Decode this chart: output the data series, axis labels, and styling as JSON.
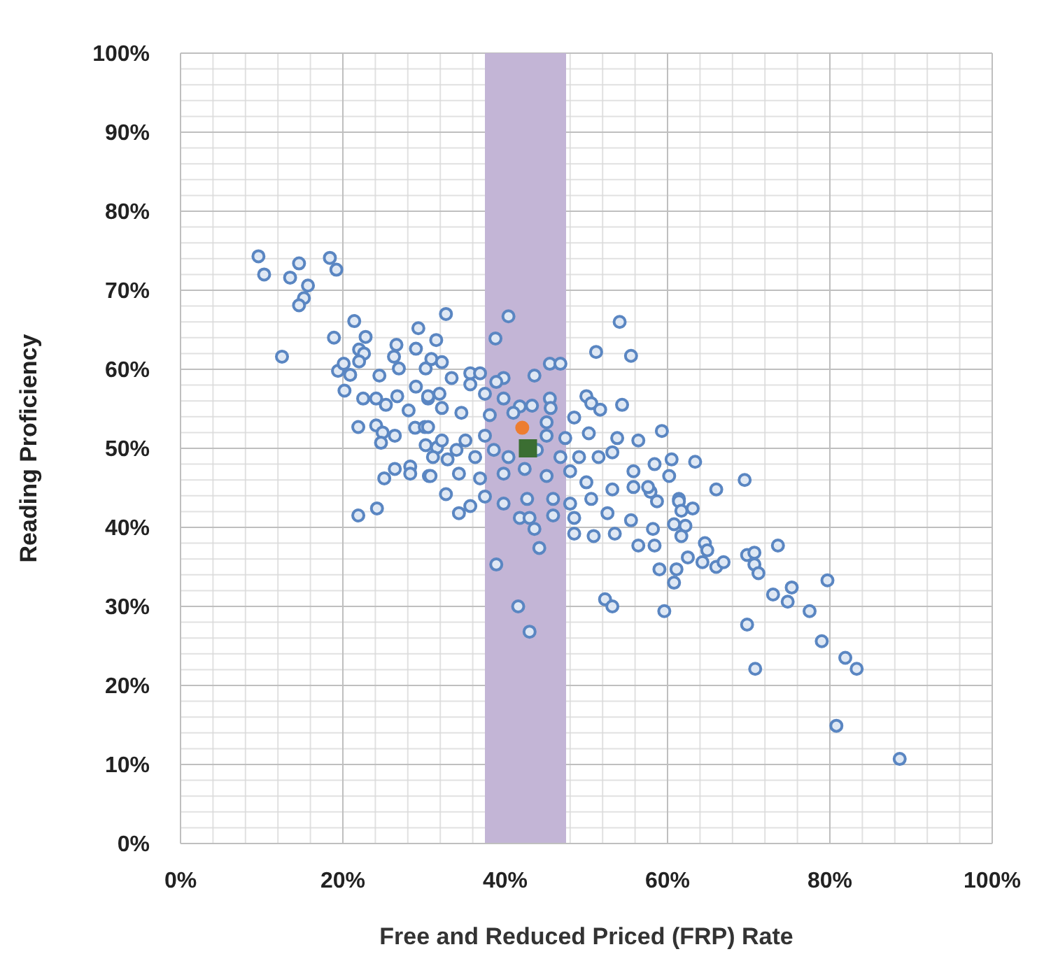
{
  "chart_data": {
    "type": "scatter",
    "xlabel": "Free and Reduced Priced (FRP) Rate",
    "ylabel": "Reading Proficiency",
    "xlim": [
      0,
      100
    ],
    "ylim": [
      0,
      100
    ],
    "xticks": [
      {
        "value": 0,
        "label": "0%"
      },
      {
        "value": 20,
        "label": "20%"
      },
      {
        "value": 40,
        "label": "40%"
      },
      {
        "value": 60,
        "label": "60%"
      },
      {
        "value": 80,
        "label": "80%"
      },
      {
        "value": 100,
        "label": "100%"
      }
    ],
    "yticks": [
      {
        "value": 0,
        "label": "0%"
      },
      {
        "value": 10,
        "label": "10%"
      },
      {
        "value": 20,
        "label": "20%"
      },
      {
        "value": 30,
        "label": "30%"
      },
      {
        "value": 40,
        "label": "40%"
      },
      {
        "value": 50,
        "label": "50%"
      },
      {
        "value": 60,
        "label": "60%"
      },
      {
        "value": 70,
        "label": "70%"
      },
      {
        "value": 80,
        "label": "80%"
      },
      {
        "value": 90,
        "label": "90%"
      },
      {
        "value": 100,
        "label": "100%"
      }
    ],
    "grid": true,
    "legend": false,
    "marker": "circle",
    "bands": [
      {
        "axis": "x",
        "from": 37.5,
        "to": 47.5,
        "color": "#c3b5d6"
      }
    ],
    "series": [
      {
        "color": "#5a86c2",
        "x": [
          9.6,
          10.3,
          14.6,
          13.5,
          15.7,
          15.2,
          14.6,
          18.4,
          19.2,
          21.4,
          18.9,
          12.5,
          22.8,
          22.0,
          22.6,
          22.0,
          19.4,
          20.1,
          20.9,
          20.2,
          24.5,
          26.6,
          26.3,
          26.9,
          29.0,
          29.3,
          31.5,
          32.7,
          30.2,
          30.9,
          32.2,
          22.5,
          24.1,
          25.3,
          26.7,
          21.9,
          24.1,
          24.9,
          24.7,
          26.4,
          28.1,
          29.0,
          28.9,
          30.1,
          30.2,
          31.6,
          32.9,
          25.1,
          26.4,
          28.3,
          28.3,
          30.6,
          32.7,
          21.9,
          24.2,
          30.5,
          31.9,
          40.4,
          54.1,
          38.8,
          51.2,
          55.5,
          45.5,
          46.8,
          43.6,
          35.7,
          36.9,
          39.8,
          38.9,
          33.4,
          35.7,
          37.5,
          39.8,
          41.8,
          43.3,
          45.5,
          45.6,
          50.0,
          50.6,
          51.7,
          54.4,
          48.5,
          45.1,
          41.0,
          38.1,
          34.6,
          32.2,
          30.5,
          59.3,
          56.4,
          53.8,
          50.3,
          47.4,
          45.1,
          37.5,
          35.1,
          32.2,
          30.5,
          58.4,
          60.5,
          60.2,
          55.8,
          53.2,
          51.5,
          49.1,
          46.8,
          43.9,
          40.4,
          38.6,
          36.3,
          34.0,
          31.1,
          30.8,
          34.3,
          36.9,
          39.8,
          42.4,
          45.1,
          48.0,
          50.0,
          53.2,
          55.8,
          57.9,
          61.4,
          37.5,
          39.8,
          42.7,
          45.9,
          48.0,
          50.6,
          34.3,
          35.7,
          41.8,
          43.0,
          45.9,
          48.5,
          52.6,
          55.5,
          48.5,
          50.9,
          53.5,
          56.4,
          58.4,
          43.6,
          44.2,
          59.0,
          38.9,
          52.3,
          53.2,
          59.6,
          41.6,
          43.0,
          63.4,
          66.0,
          69.5,
          57.6,
          58.7,
          61.4,
          61.7,
          63.1,
          60.8,
          62.2,
          61.7,
          58.2,
          64.6,
          64.9,
          62.5,
          64.3,
          66.0,
          66.9,
          61.1,
          60.8,
          69.8,
          70.7,
          70.7,
          71.2,
          73.6,
          73.0,
          75.3,
          74.8,
          79.7,
          77.5,
          69.8,
          79.0,
          81.9,
          83.3,
          70.8,
          80.8,
          88.6
        ],
        "values": [
          74.3,
          72.0,
          73.4,
          71.6,
          70.6,
          69.0,
          68.1,
          74.1,
          72.6,
          66.1,
          64.0,
          61.6,
          64.1,
          62.5,
          62.0,
          61.0,
          59.8,
          60.7,
          59.3,
          57.3,
          59.2,
          63.1,
          61.6,
          60.1,
          62.6,
          65.2,
          63.7,
          67.0,
          60.1,
          61.3,
          60.9,
          56.3,
          56.3,
          55.5,
          56.6,
          52.7,
          52.9,
          52.0,
          50.7,
          51.6,
          54.8,
          57.8,
          52.6,
          52.7,
          50.4,
          50.1,
          48.6,
          46.2,
          47.4,
          47.7,
          46.8,
          46.5,
          44.2,
          41.5,
          42.4,
          56.3,
          56.9,
          66.7,
          66.0,
          63.9,
          62.2,
          61.7,
          60.7,
          60.7,
          59.2,
          59.5,
          59.5,
          58.9,
          58.4,
          58.9,
          58.1,
          56.9,
          56.3,
          55.3,
          55.4,
          56.3,
          55.1,
          56.6,
          55.7,
          54.9,
          55.5,
          53.9,
          53.3,
          54.5,
          54.2,
          54.5,
          55.1,
          56.6,
          52.2,
          51.0,
          51.3,
          51.9,
          51.3,
          51.6,
          51.6,
          51.0,
          51.0,
          52.7,
          48.0,
          48.6,
          46.5,
          47.1,
          49.5,
          48.9,
          48.9,
          48.9,
          49.8,
          48.9,
          49.8,
          48.9,
          49.8,
          48.9,
          46.5,
          46.8,
          46.2,
          46.8,
          47.4,
          46.5,
          47.1,
          45.7,
          44.8,
          45.1,
          44.5,
          43.6,
          43.9,
          43.0,
          43.6,
          43.6,
          43.0,
          43.6,
          41.8,
          42.7,
          41.2,
          41.2,
          41.5,
          41.2,
          41.8,
          40.9,
          39.2,
          38.9,
          39.2,
          37.7,
          37.7,
          39.8,
          37.4,
          34.7,
          35.3,
          30.9,
          30.0,
          29.4,
          30.0,
          26.8,
          48.3,
          44.8,
          46.0,
          45.1,
          43.3,
          43.3,
          42.1,
          42.4,
          40.4,
          40.2,
          38.9,
          39.8,
          38.0,
          37.1,
          36.2,
          35.6,
          35.0,
          35.6,
          34.7,
          33.0,
          36.5,
          36.8,
          35.3,
          34.2,
          37.7,
          31.5,
          32.4,
          30.6,
          33.3,
          29.4,
          27.7,
          25.6,
          23.5,
          22.1,
          22.1,
          14.9,
          10.7
        ]
      },
      {
        "color": "#ed7d31",
        "marker": "circle",
        "x": [
          42.1
        ],
        "values": [
          52.6
        ]
      },
      {
        "color": "#3b6e32",
        "marker": "square",
        "x": [
          42.8
        ],
        "values": [
          50.0
        ]
      }
    ]
  }
}
